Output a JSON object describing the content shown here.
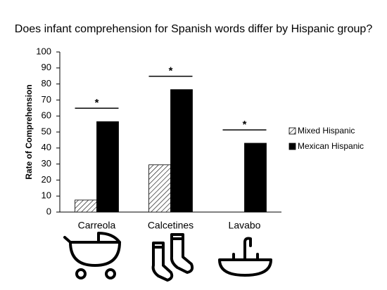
{
  "chart_data": {
    "type": "bar",
    "title": "Does infant comprehension for Spanish words differ by Hispanic group?",
    "y_label": "Rate of Comprehension",
    "categories": [
      "Carreola",
      "Calcetines",
      "Lavabo"
    ],
    "series": [
      {
        "name": "Mixed Hispanic",
        "color": "#000000",
        "pattern": "hatch",
        "values": [
          7.5,
          29.5,
          0
        ]
      },
      {
        "name": "Mexican Hispanic",
        "color": "#000000",
        "pattern": "solid",
        "values": [
          56.5,
          76.5,
          43
        ]
      }
    ],
    "significance_markers": [
      "*",
      "*",
      "*"
    ],
    "ylim": [
      0,
      100
    ],
    "yticks": [
      0,
      10,
      20,
      30,
      40,
      50,
      60,
      70,
      80,
      90,
      100
    ],
    "grid": false,
    "legend": "right"
  }
}
